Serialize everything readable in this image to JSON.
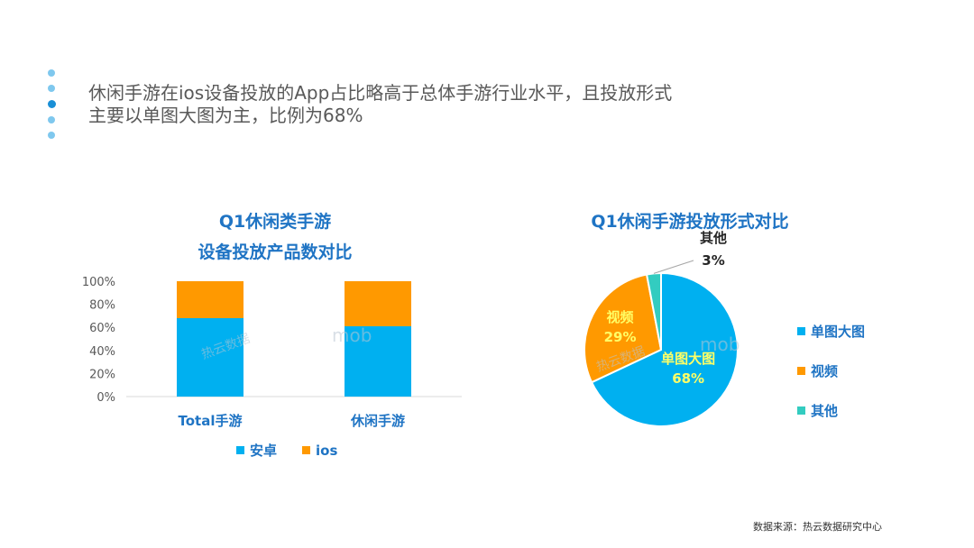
{
  "headline": {
    "line1": "休闲手游在ios设备投放的App占比略高于总体手游行业水平，且投放形式",
    "line2": "主要以单图大图为主，比例为68%"
  },
  "bar_title": {
    "line1": "Q1休闲类手游",
    "line2": "设备投放产品数对比"
  },
  "pie_title": "Q1休闲手游投放形式对比",
  "source": "数据来源：热云数据研究中心",
  "watermarks": {
    "reyun": "热云数据",
    "mob": "mob"
  },
  "colors": {
    "blue": "#00b0f0",
    "orange": "#ff9900",
    "teal": "#33ccc0",
    "title": "#1f74c4"
  },
  "chart_data": [
    {
      "type": "bar",
      "stacked": true,
      "categories": [
        "Total手游",
        "休闲手游"
      ],
      "series": [
        {
          "name": "安卓",
          "values": [
            68,
            61
          ],
          "color": "#00b0f0"
        },
        {
          "name": "ios",
          "values": [
            32,
            39
          ],
          "color": "#ff9900"
        }
      ],
      "title": "Q1休闲类手游 设备投放产品数对比",
      "ylim": [
        0,
        100
      ],
      "yticks": [
        "0%",
        "20%",
        "40%",
        "60%",
        "80%",
        "100%"
      ],
      "legend": "bottom",
      "grid": false
    },
    {
      "type": "pie",
      "title": "Q1休闲手游投放形式对比",
      "slices": [
        {
          "label": "单图大图",
          "value": 68,
          "display": "68%",
          "color": "#00b0f0"
        },
        {
          "label": "视频",
          "value": 29,
          "display": "29%",
          "color": "#ff9900"
        },
        {
          "label": "其他",
          "value": 3,
          "display": "3%",
          "color": "#33ccc0"
        }
      ],
      "legend": "right"
    }
  ]
}
